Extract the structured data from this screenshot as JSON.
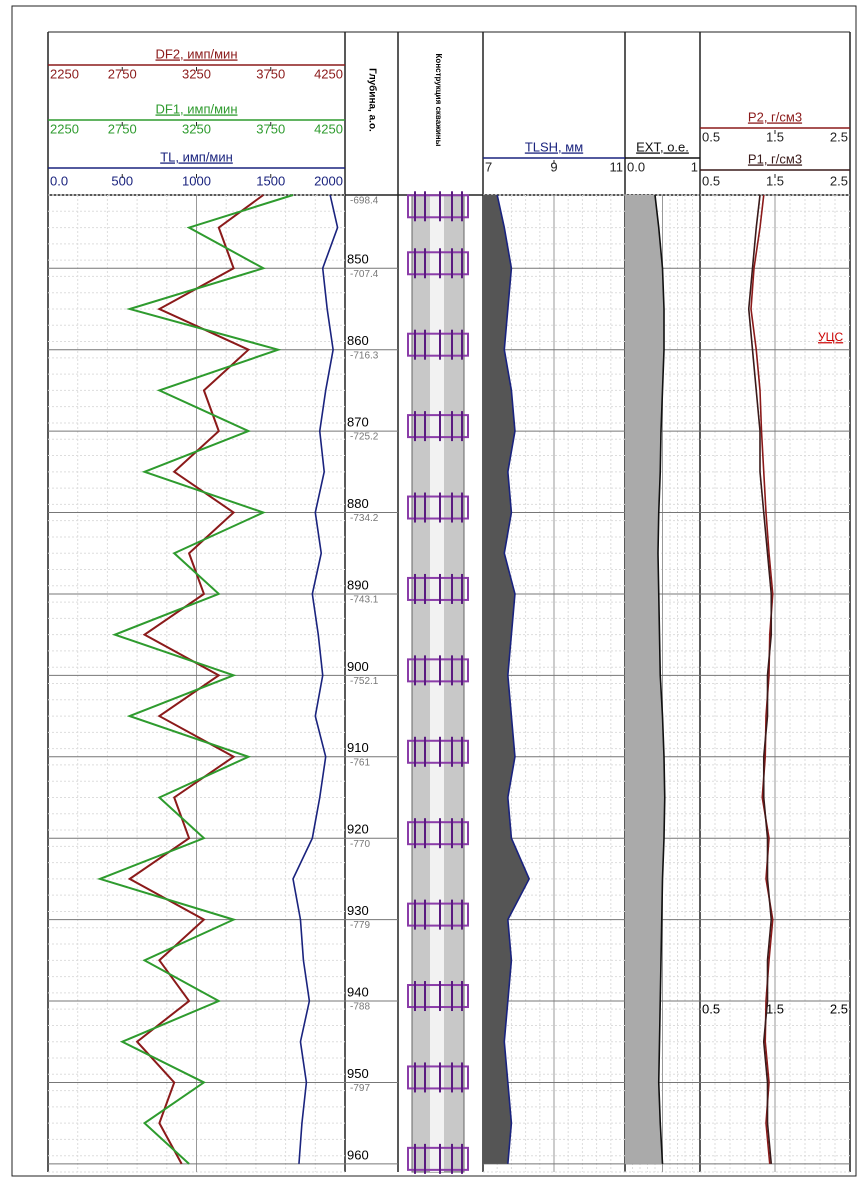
{
  "depth_label": "Глубина, а.о.",
  "construction_label": "Конструкция скважины",
  "flag": "УЦС",
  "depth_lim": [
    841,
    961
  ],
  "depth_ticks": [
    850,
    860,
    870,
    880,
    890,
    900,
    910,
    920,
    930,
    940,
    950,
    960
  ],
  "abs_depths": [
    -698.4,
    -707.4,
    -716.3,
    -725.2,
    -734.2,
    -743.1,
    -752.1,
    -761,
    -770,
    -779,
    -788,
    -797
  ],
  "samples": [
    841,
    845,
    850,
    855,
    860,
    865,
    870,
    875,
    880,
    885,
    890,
    895,
    900,
    905,
    910,
    915,
    920,
    925,
    930,
    935,
    940,
    945,
    950,
    955,
    960
  ],
  "tracks": [
    {
      "curves": [
        {
          "name": "DF2, имп/мин",
          "color": "#8b1a1a",
          "lim": [
            2250,
            4250
          ],
          "ticks": [
            2250,
            2750,
            3250,
            3750,
            4250
          ],
          "values": [
            3700,
            3400,
            3500,
            3000,
            3600,
            3300,
            3400,
            3100,
            3500,
            3200,
            3300,
            2900,
            3400,
            3000,
            3500,
            3100,
            3200,
            2800,
            3300,
            3000,
            3200,
            2850,
            3100,
            3000,
            3150
          ]
        },
        {
          "name": "DF1, имп/мин",
          "color": "#2e9b2e",
          "lim": [
            2250,
            4250
          ],
          "ticks": [
            2250,
            2750,
            3250,
            3750,
            4250
          ],
          "values": [
            3900,
            3200,
            3700,
            2800,
            3800,
            3000,
            3600,
            2900,
            3700,
            3100,
            3400,
            2700,
            3500,
            2800,
            3600,
            3000,
            3300,
            2600,
            3500,
            2900,
            3400,
            2750,
            3300,
            2900,
            3200
          ]
        },
        {
          "name": "TL, имп/мин",
          "color": "#1a237e",
          "lim": [
            0,
            2000
          ],
          "ticks": [
            {
              "value": 0,
              "label": "0.0"
            },
            500,
            1000,
            1500,
            2000
          ],
          "values": [
            1900,
            1950,
            1850,
            1880,
            1920,
            1870,
            1830,
            1860,
            1800,
            1840,
            1780,
            1820,
            1850,
            1800,
            1870,
            1830,
            1780,
            1650,
            1700,
            1720,
            1760,
            1700,
            1740,
            1710,
            1690
          ]
        }
      ]
    },
    {
      "curves": [
        {
          "name": "TLSH, мм",
          "color": "#1a237e",
          "lim": [
            7,
            11
          ],
          "ticks": [
            7,
            9,
            11
          ],
          "values": [
            7.4,
            7.6,
            7.8,
            7.7,
            7.6,
            7.8,
            7.9,
            7.7,
            7.8,
            7.6,
            7.9,
            7.8,
            7.7,
            7.8,
            7.9,
            7.7,
            7.8,
            8.3,
            7.7,
            7.8,
            7.7,
            7.6,
            7.7,
            7.8,
            7.7
          ]
        }
      ]
    },
    {
      "curves": [
        {
          "name": "EXT, о.е.",
          "color": "#111111",
          "lim": [
            0,
            1
          ],
          "ticks": [
            {
              "value": 0,
              "label": "0.0"
            },
            1
          ],
          "values": [
            0.4,
            0.45,
            0.5,
            0.52,
            0.52,
            0.5,
            0.48,
            0.47,
            0.45,
            0.44,
            0.45,
            0.46,
            0.47,
            0.5,
            0.52,
            0.53,
            0.52,
            0.5,
            0.49,
            0.48,
            0.47,
            0.46,
            0.45,
            0.47,
            0.5
          ]
        }
      ]
    },
    {
      "curves": [
        {
          "name": "P2, г/см3",
          "color": "#8b1a1a",
          "lim": [
            0.5,
            2.5
          ],
          "ticks": [
            0.5,
            1.5,
            2.5
          ],
          "values": [
            1.35,
            1.3,
            1.22,
            1.18,
            1.25,
            1.3,
            1.32,
            1.35,
            1.38,
            1.42,
            1.47,
            1.43,
            1.42,
            1.38,
            1.37,
            1.33,
            1.42,
            1.38,
            1.47,
            1.42,
            1.38,
            1.37,
            1.42,
            1.38,
            1.43
          ]
        },
        {
          "name": "P1, г/см3",
          "color": "#3a1a1a",
          "lim": [
            0.5,
            2.5
          ],
          "ticks": [
            0.5,
            1.5,
            2.5
          ],
          "values": [
            1.3,
            1.25,
            1.2,
            1.15,
            1.2,
            1.25,
            1.3,
            1.3,
            1.35,
            1.4,
            1.45,
            1.45,
            1.4,
            1.4,
            1.35,
            1.35,
            1.4,
            1.4,
            1.45,
            1.4,
            1.4,
            1.35,
            1.4,
            1.4,
            1.45
          ]
        }
      ]
    }
  ]
}
